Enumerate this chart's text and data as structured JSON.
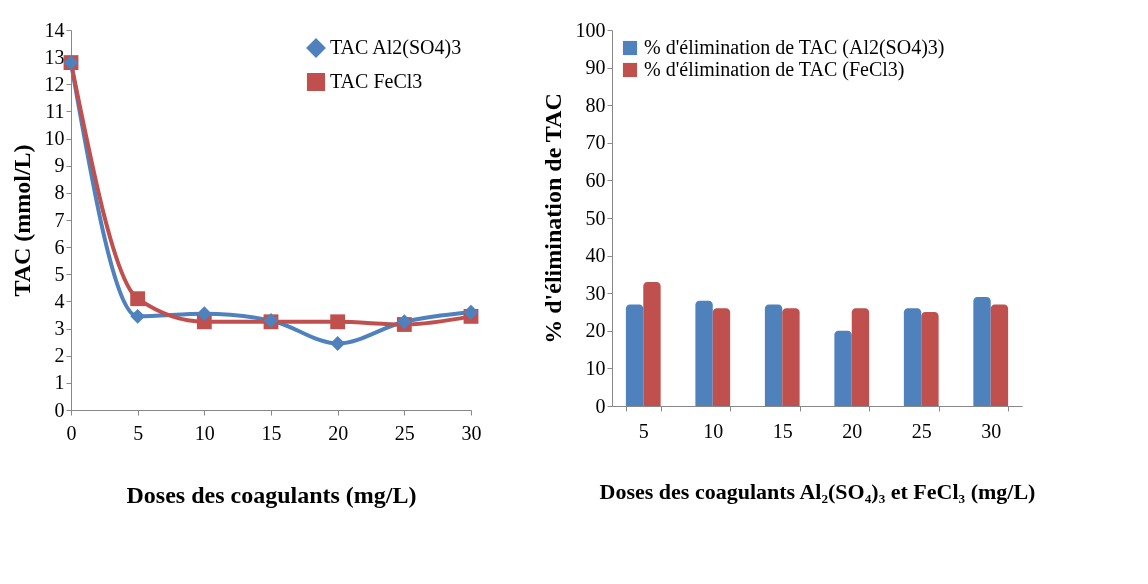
{
  "chart_data": [
    {
      "type": "line",
      "xlabel": "Doses des coagulants (mg/L)",
      "ylabel": "TAC (mmol/L)",
      "x": [
        0,
        5,
        10,
        15,
        20,
        25,
        30
      ],
      "series": [
        {
          "name": "TAC Al2(SO4)3",
          "color": "#4f81bd",
          "marker": "diamond",
          "values": [
            12.8,
            3.45,
            3.55,
            3.3,
            2.45,
            3.25,
            3.6
          ]
        },
        {
          "name": "TAC FeCl3",
          "color": "#c0504d",
          "marker": "square",
          "values": [
            12.8,
            4.1,
            3.25,
            3.25,
            3.25,
            3.15,
            3.45
          ]
        }
      ],
      "xlim": [
        0,
        30
      ],
      "xticks": [
        0,
        5,
        10,
        15,
        20,
        25,
        30
      ],
      "ylim": [
        0,
        14
      ],
      "yticks": [
        0,
        1,
        2,
        3,
        4,
        5,
        6,
        7,
        8,
        9,
        10,
        11,
        12,
        13,
        14
      ],
      "grid": false,
      "legend": "top right",
      "line_style": "solid"
    },
    {
      "type": "bar",
      "xlabel": "Doses des coagulants  Al₂(SO₄)₃ et FeCl₃ (mg/L)",
      "ylabel": "% d'élimination de TAC",
      "categories": [
        "5",
        "10",
        "15",
        "20",
        "25",
        "30"
      ],
      "series": [
        {
          "name": "% d'élimination de TAC (Al2(SO4)3)",
          "color": "#4f81bd",
          "values": [
            27,
            28,
            27,
            20,
            26,
            29
          ]
        },
        {
          "name": "% d'élimination de TAC (FeCl3)",
          "color": "#c0504d",
          "values": [
            33,
            26,
            26,
            26,
            25,
            27
          ]
        }
      ],
      "ylim": [
        0,
        100
      ],
      "yticks": [
        0,
        10,
        20,
        30,
        40,
        50,
        60,
        70,
        80,
        90,
        100
      ],
      "grid": false,
      "legend": "top left"
    }
  ]
}
